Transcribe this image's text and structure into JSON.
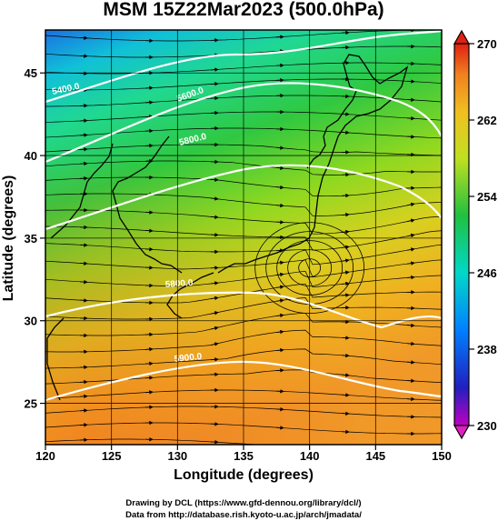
{
  "title": "MSM 15Z22Mar2023 (500.0hPa)",
  "x_axis": {
    "label": "Longitude (degrees)",
    "range": [
      120,
      150
    ],
    "ticks": [
      "120",
      "125",
      "130",
      "135",
      "140",
      "145",
      "150"
    ]
  },
  "y_axis": {
    "label": "Latitude  (degrees)",
    "range": [
      22.5,
      47.6
    ],
    "ticks": [
      "25",
      "30",
      "35",
      "40",
      "45"
    ]
  },
  "colorbar": {
    "range": [
      230,
      270
    ],
    "ticks": [
      "230",
      "238",
      "246",
      "254",
      "262",
      "270"
    ],
    "colors": [
      "#c000c0",
      "#2020c0",
      "#00a0ff",
      "#00d8c0",
      "#20c040",
      "#c0e020",
      "#f0c020",
      "#f08020",
      "#e02010"
    ]
  },
  "contour_labels": [
    "5400.0",
    "5600.0",
    "5800.0",
    "5800.0",
    "5900.0"
  ],
  "credits": {
    "line1": "Drawing by DCL (https://www.gfd-dennou.org/library/dcl/)",
    "line2": "Data from http://database.rish.kyoto-u.ac.jp/arch/jmadata/"
  },
  "map_features": {
    "field": "temperature (colour shading)",
    "overlays": [
      "geopotential height contours (white)",
      "wind streamlines (black)",
      "coastlines"
    ],
    "low_center": {
      "lon": 140.0,
      "lat": 33.2
    }
  }
}
